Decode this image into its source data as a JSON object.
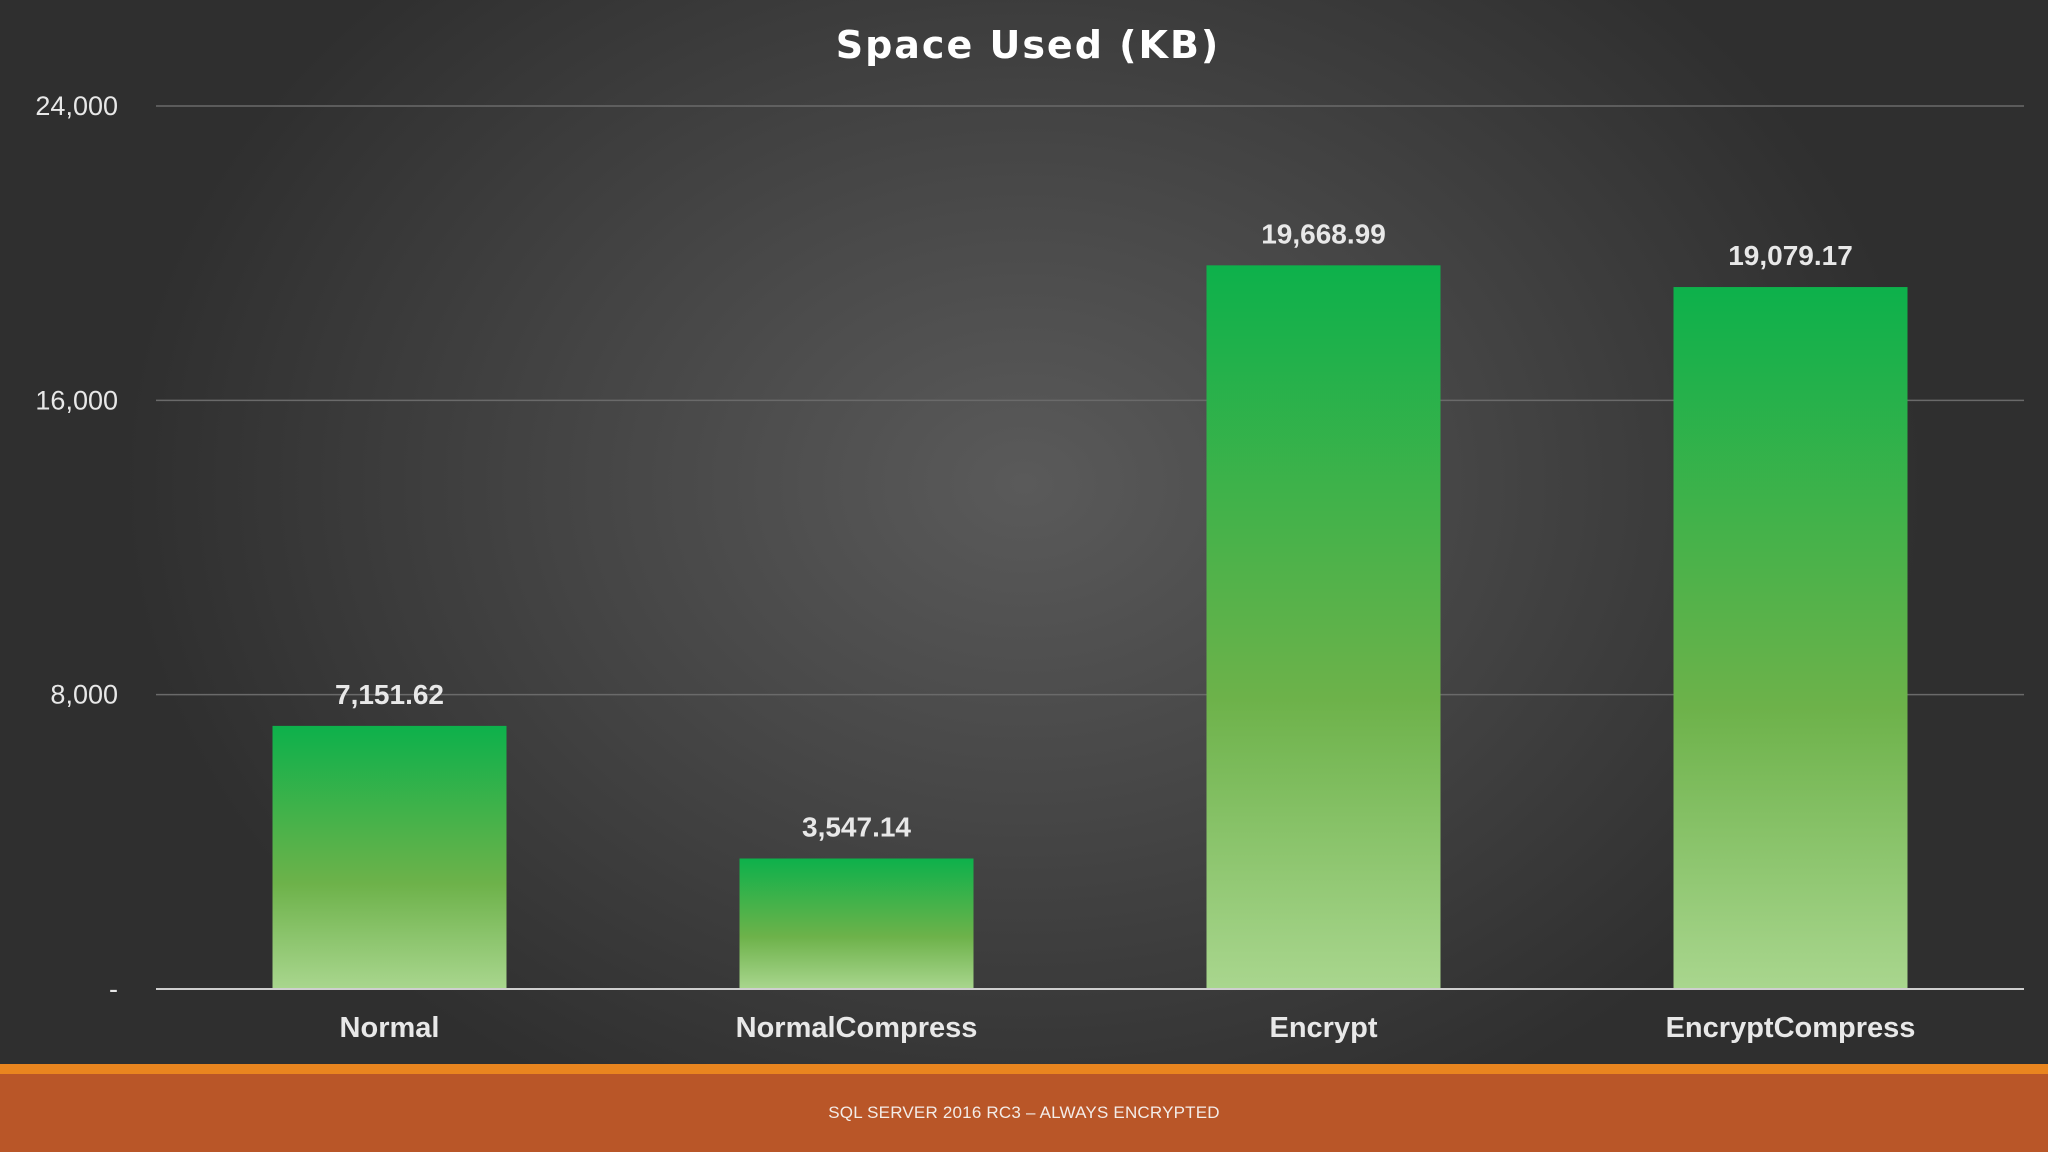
{
  "chart_data": {
    "type": "bar",
    "title": "Space Used (KB)",
    "categories": [
      "Normal",
      "NormalCompress",
      "Encrypt",
      "EncryptCompress"
    ],
    "values": [
      7151.62,
      3547.14,
      19668.99,
      19079.17
    ],
    "value_labels": [
      "7,151.62",
      "3,547.14",
      "19,668.99",
      "19,079.17"
    ],
    "ylim": [
      0,
      24000
    ],
    "yticks": [
      0,
      8000,
      16000,
      24000
    ],
    "ytick_labels": [
      "-",
      "8,000",
      "16,000",
      "24,000"
    ],
    "xlabel": "",
    "ylabel": "",
    "grid": true,
    "colors": {
      "bar_top": "#0db14b",
      "bar_mid": "#6db24a",
      "bar_bottom": "#a9d68e",
      "grid": "#6a6a6a",
      "axis": "#cfcfcf",
      "text": "#e8e8e8",
      "title": "#ffffff"
    }
  },
  "footer": {
    "text": "SQL SERVER 2016 RC3 – ALWAYS ENCRYPTED",
    "band_color": "#b95628",
    "accent_color": "#e9851f"
  }
}
